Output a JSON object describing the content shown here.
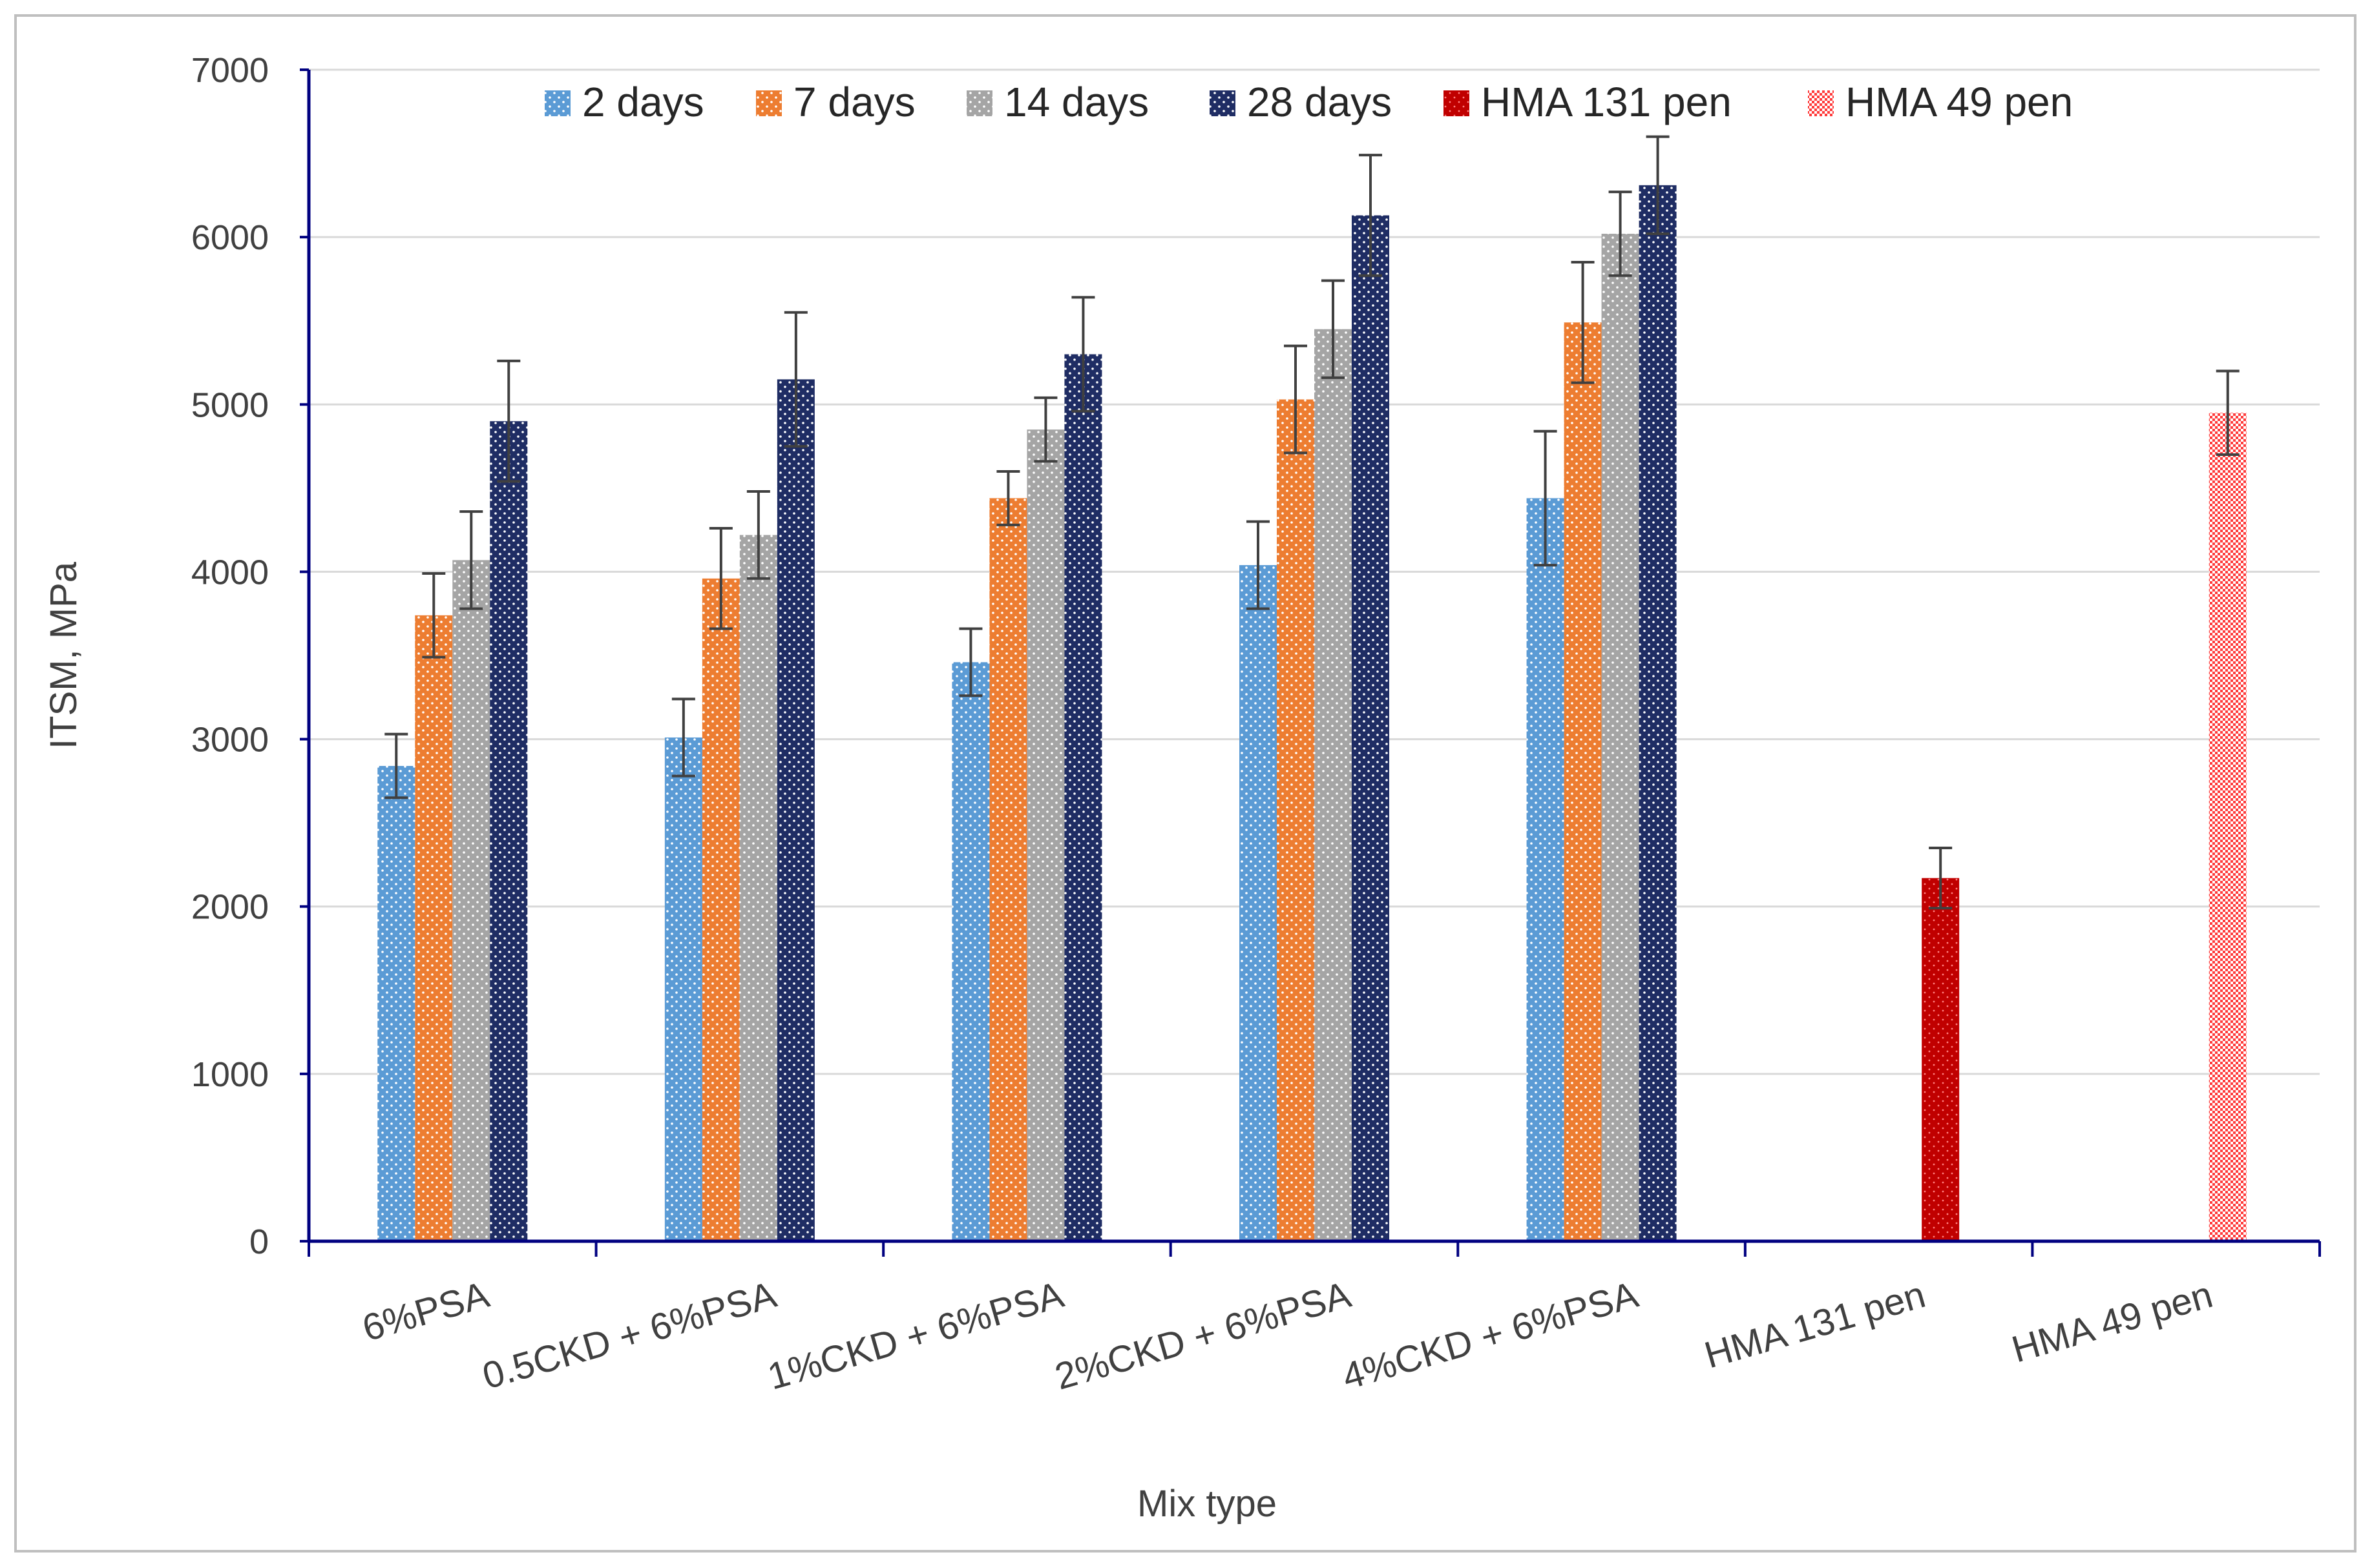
{
  "chart_data": {
    "type": "bar",
    "title": "",
    "xlabel": "Mix type",
    "ylabel": "ITSM, MPa",
    "ylim": [
      0,
      7000
    ],
    "yticks": [
      0,
      1000,
      2000,
      3000,
      4000,
      5000,
      6000,
      7000
    ],
    "grid": true,
    "legend_position": "top",
    "categories": [
      "6%PSA",
      "0.5CKD + 6%PSA",
      "1%CKD + 6%PSA",
      "2%CKD + 6%PSA",
      "4%CKD + 6%PSA",
      "HMA 131 pen",
      "HMA 49 pen"
    ],
    "series": [
      {
        "name": "2 days",
        "color": "#5b9bd5",
        "pattern": "dots",
        "values": [
          2840,
          3010,
          3460,
          4040,
          4440,
          null,
          null
        ],
        "errors": [
          190,
          230,
          200,
          260,
          400,
          null,
          null
        ]
      },
      {
        "name": "7 days",
        "color": "#ed7d31",
        "pattern": "dots",
        "values": [
          3740,
          3960,
          4440,
          5030,
          5490,
          null,
          null
        ],
        "errors": [
          250,
          300,
          160,
          320,
          360,
          null,
          null
        ]
      },
      {
        "name": "14 days",
        "color": "#a5a5a5",
        "pattern": "dots",
        "values": [
          4070,
          4220,
          4850,
          5450,
          6020,
          null,
          null
        ],
        "errors": [
          290,
          260,
          190,
          290,
          250,
          null,
          null
        ]
      },
      {
        "name": "28 days",
        "color": "#1f2d64",
        "pattern": "dots",
        "values": [
          4900,
          5150,
          5300,
          6130,
          6310,
          null,
          null
        ],
        "errors": [
          360,
          400,
          340,
          360,
          290,
          null,
          null
        ]
      },
      {
        "name": "HMA 131 pen",
        "color": "#c00000",
        "pattern": "dots",
        "values": [
          null,
          null,
          null,
          null,
          null,
          2170,
          null
        ],
        "errors": [
          null,
          null,
          null,
          null,
          null,
          180,
          null
        ]
      },
      {
        "name": "HMA 49 pen",
        "color": "#ff3b3b",
        "pattern": "checker",
        "values": [
          null,
          null,
          null,
          null,
          null,
          null,
          4950
        ],
        "errors": [
          null,
          null,
          null,
          null,
          null,
          null,
          250
        ]
      }
    ]
  }
}
